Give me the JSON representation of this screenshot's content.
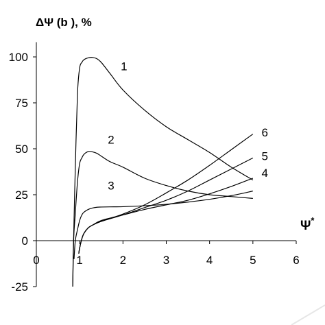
{
  "chart_data": {
    "type": "line",
    "title": "",
    "ylabel": "ΔΨ (b ), %",
    "xlabel": "Ψ",
    "xlabel_superscript": "*",
    "xlim": [
      0,
      6
    ],
    "ylim": [
      -25,
      110
    ],
    "x_ticks": [
      0,
      1,
      2,
      3,
      4,
      5,
      6
    ],
    "y_ticks": [
      -25,
      0,
      25,
      50,
      75,
      100
    ],
    "x_tick_labels": [
      "0",
      "1",
      "2",
      "3",
      "4",
      "5",
      "6"
    ],
    "y_tick_labels": [
      "-25",
      "0",
      "25",
      "50",
      "75",
      "100"
    ],
    "grid": false,
    "legend": "none (curves labelled inline)",
    "series": [
      {
        "name": "1",
        "label_at": [
          1.95,
          95
        ],
        "x": [
          0.84,
          0.86,
          0.9,
          0.95,
          1.0,
          1.05,
          1.1,
          1.2,
          1.3,
          1.4,
          1.5,
          1.7,
          2.0,
          2.5,
          3.0,
          3.5,
          4.0,
          4.5,
          5.0
        ],
        "y": [
          -25,
          0,
          40,
          80,
          94,
          97,
          98.5,
          99.5,
          99.7,
          99,
          97,
          91,
          82,
          71,
          62,
          55,
          48,
          40,
          33
        ]
      },
      {
        "name": "2",
        "label_at": [
          1.65,
          55
        ],
        "x": [
          0.84,
          0.86,
          0.9,
          0.95,
          1.0,
          1.05,
          1.1,
          1.2,
          1.3,
          1.4,
          1.5,
          1.7,
          2.0,
          2.5,
          3.0,
          3.5,
          4.0,
          4.5,
          5.0
        ],
        "y": [
          -25,
          0,
          15,
          32,
          42,
          45,
          47,
          48.5,
          48.3,
          47.5,
          46,
          43,
          40,
          34,
          30,
          27,
          25,
          24,
          23
        ]
      },
      {
        "name": "3",
        "label_at": [
          1.65,
          30
        ],
        "x": [
          0.87,
          0.9,
          0.95,
          1.0,
          1.05,
          1.1,
          1.2,
          1.3,
          1.4,
          1.5,
          1.7,
          2.0,
          2.5,
          3.0,
          3.5,
          4.0,
          4.5,
          5.0
        ],
        "y": [
          -10,
          0,
          6,
          11,
          14,
          15.5,
          17,
          17.8,
          18.2,
          18.3,
          18.4,
          18.5,
          19,
          19.8,
          21,
          22.5,
          24.5,
          27
        ]
      },
      {
        "name": "4",
        "label_at": [
          5.2,
          37
        ],
        "x": [
          0.98,
          1.0,
          1.05,
          1.1,
          1.2,
          1.3,
          1.5,
          2.0,
          2.5,
          3.0,
          3.5,
          4.0,
          4.5,
          5.0
        ],
        "y": [
          -7,
          -4,
          1,
          4,
          7,
          8.5,
          11,
          14,
          17,
          19.5,
          22,
          25.5,
          29.5,
          34
        ]
      },
      {
        "name": "5",
        "label_at": [
          5.2,
          46
        ],
        "x": [
          0.98,
          1.0,
          1.05,
          1.1,
          1.2,
          1.3,
          1.5,
          2.0,
          2.5,
          3.0,
          3.5,
          4.0,
          4.5,
          5.0
        ],
        "y": [
          -7,
          -4,
          1,
          4,
          7,
          8.5,
          10.5,
          14,
          18,
          22,
          27,
          33,
          39,
          45
        ]
      },
      {
        "name": "6",
        "label_at": [
          5.2,
          59
        ],
        "x": [
          0.98,
          1.0,
          1.05,
          1.1,
          1.2,
          1.3,
          1.5,
          2.0,
          2.5,
          3.0,
          3.5,
          4.0,
          4.5,
          5.0
        ],
        "y": [
          -7,
          -4,
          1,
          4,
          7,
          8.5,
          10.5,
          14.5,
          19.5,
          26,
          33,
          41,
          49.5,
          58
        ]
      }
    ]
  }
}
